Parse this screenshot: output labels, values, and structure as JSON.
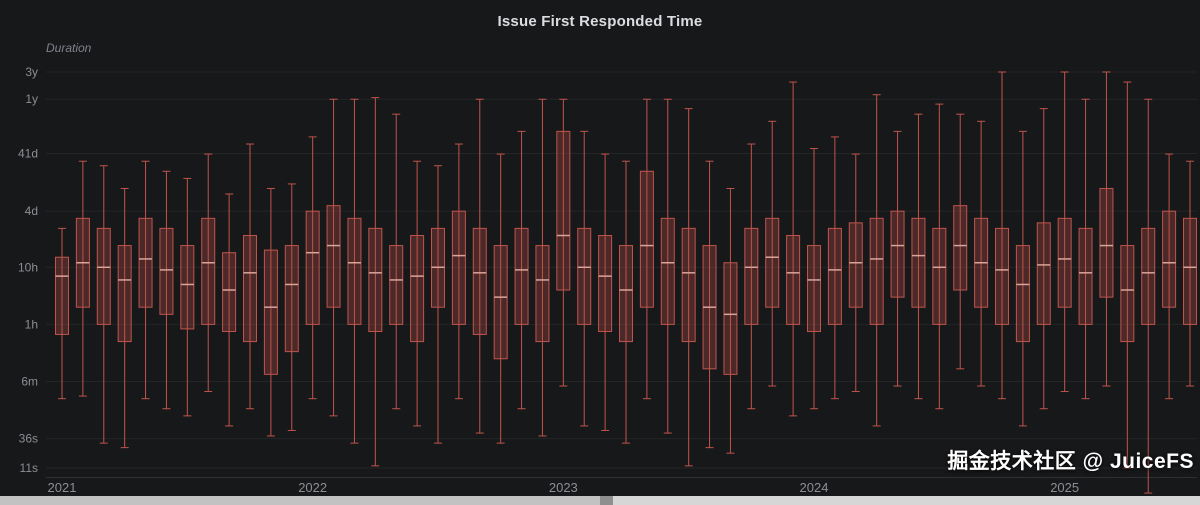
{
  "title": "Issue First Responded Time",
  "y_axis_label": "Duration",
  "watermark": "掘金技术社区 @ JuiceFS",
  "colors": {
    "background": "#17181a",
    "grid": "rgba(255,255,255,0.06)",
    "axis_line": "#2e3034",
    "axis_text": "#8b8e94",
    "title_text": "#dcdde0",
    "box_fill": "rgba(196,84,74,0.30)",
    "box_stroke": "#c0544c",
    "median": "#dca399"
  },
  "chart_data": {
    "type": "boxplot",
    "title": "Issue First Responded Time",
    "ylabel": "Duration",
    "y_scale": "log",
    "y_unit": "seconds",
    "box_values_order": [
      "low",
      "q1",
      "median",
      "q3",
      "high"
    ],
    "y_ticks": [
      {
        "label": "3y",
        "value": 94608000
      },
      {
        "label": "1y",
        "value": 31536000
      },
      {
        "label": "41d",
        "value": 3542400
      },
      {
        "label": "4d",
        "value": 345600
      },
      {
        "label": "10h",
        "value": 36000
      },
      {
        "label": "1h",
        "value": 3600
      },
      {
        "label": "6m",
        "value": 360
      },
      {
        "label": "36s",
        "value": 36
      },
      {
        "label": "11s",
        "value": 11
      }
    ],
    "x_ticks": [
      {
        "label": "2021",
        "month_index": 0
      },
      {
        "label": "2022",
        "month_index": 12
      },
      {
        "label": "2023",
        "month_index": 24
      },
      {
        "label": "2024",
        "month_index": 36
      },
      {
        "label": "2025",
        "month_index": 48
      }
    ],
    "categories": [
      "2021-01",
      "2021-02",
      "2021-03",
      "2021-04",
      "2021-05",
      "2021-06",
      "2021-07",
      "2021-08",
      "2021-09",
      "2021-10",
      "2021-11",
      "2021-12",
      "2022-01",
      "2022-02",
      "2022-03",
      "2022-04",
      "2022-05",
      "2022-06",
      "2022-07",
      "2022-08",
      "2022-09",
      "2022-10",
      "2022-11",
      "2022-12",
      "2023-01",
      "2023-02",
      "2023-03",
      "2023-04",
      "2023-05",
      "2023-06",
      "2023-07",
      "2023-08",
      "2023-09",
      "2023-10",
      "2023-11",
      "2023-12",
      "2024-01",
      "2024-02",
      "2024-03",
      "2024-04",
      "2024-05",
      "2024-06",
      "2024-07",
      "2024-08",
      "2024-09",
      "2024-10",
      "2024-11",
      "2024-12",
      "2025-01",
      "2025-02",
      "2025-03",
      "2025-04",
      "2025-05",
      "2025-06",
      "2025-07"
    ],
    "boxes": [
      [
        180,
        2400,
        25200,
        54000,
        172800
      ],
      [
        200,
        7200,
        43200,
        259200,
        2592000
      ],
      [
        30,
        3600,
        36000,
        172800,
        2160000
      ],
      [
        25,
        1800,
        21600,
        86400,
        864000
      ],
      [
        180,
        7200,
        50400,
        259200,
        2592000
      ],
      [
        120,
        5400,
        32400,
        172800,
        1728000
      ],
      [
        90,
        3000,
        18000,
        86400,
        1296000
      ],
      [
        240,
        3600,
        43200,
        259200,
        3456000
      ],
      [
        60,
        2700,
        14400,
        64800,
        691200
      ],
      [
        120,
        1800,
        28800,
        129600,
        5184000
      ],
      [
        40,
        480,
        7200,
        72000,
        864000
      ],
      [
        50,
        1200,
        18000,
        86400,
        1036800
      ],
      [
        180,
        3600,
        64800,
        345600,
        6912000
      ],
      [
        90,
        7200,
        86400,
        432000,
        31536000
      ],
      [
        30,
        3600,
        43200,
        259200,
        31536000
      ],
      [
        12,
        2700,
        28800,
        172800,
        33696000
      ],
      [
        120,
        3600,
        21600,
        86400,
        17280000
      ],
      [
        60,
        1800,
        25200,
        129600,
        2592000
      ],
      [
        30,
        7200,
        36000,
        172800,
        2160000
      ],
      [
        180,
        3600,
        57600,
        345600,
        5184000
      ],
      [
        45,
        2400,
        28800,
        172800,
        31536000
      ],
      [
        30,
        900,
        10800,
        86400,
        3456000
      ],
      [
        120,
        3600,
        32400,
        172800,
        8640000
      ],
      [
        40,
        1800,
        21600,
        86400,
        31536000
      ],
      [
        300,
        14400,
        129600,
        8640000,
        31536000
      ],
      [
        60,
        3600,
        36000,
        172800,
        8640000
      ],
      [
        50,
        2700,
        25200,
        129600,
        3456000
      ],
      [
        30,
        1800,
        14400,
        86400,
        2592000
      ],
      [
        180,
        7200,
        86400,
        1728000,
        31536000
      ],
      [
        45,
        3600,
        43200,
        259200,
        31536000
      ],
      [
        12,
        1800,
        28800,
        172800,
        21600000
      ],
      [
        25,
        600,
        7200,
        86400,
        2592000
      ],
      [
        20,
        480,
        5400,
        43200,
        864000
      ],
      [
        120,
        3600,
        36000,
        172800,
        5184000
      ],
      [
        300,
        7200,
        54000,
        259200,
        12960000
      ],
      [
        90,
        3600,
        28800,
        129600,
        63072000
      ],
      [
        120,
        2700,
        21600,
        86400,
        4320000
      ],
      [
        180,
        3600,
        32400,
        172800,
        6912000
      ],
      [
        240,
        7200,
        43200,
        216000,
        3456000
      ],
      [
        60,
        3600,
        50400,
        259200,
        37843200
      ],
      [
        300,
        10800,
        86400,
        345600,
        8640000
      ],
      [
        180,
        7200,
        57600,
        259200,
        17280000
      ],
      [
        120,
        3600,
        36000,
        172800,
        25920000
      ],
      [
        600,
        14400,
        86400,
        432000,
        17280000
      ],
      [
        300,
        7200,
        43200,
        259200,
        12960000
      ],
      [
        180,
        3600,
        32400,
        172800,
        94608000
      ],
      [
        60,
        1800,
        18000,
        86400,
        8640000
      ],
      [
        120,
        3600,
        39600,
        216000,
        21600000
      ],
      [
        240,
        7200,
        50400,
        259200,
        94608000
      ],
      [
        180,
        3600,
        28800,
        172800,
        31536000
      ],
      [
        300,
        10800,
        86400,
        864000,
        94608000
      ],
      [
        11,
        1800,
        14400,
        86400,
        63072000
      ],
      [
        4,
        3600,
        28800,
        172800,
        31536000
      ],
      [
        180,
        7200,
        43200,
        345600,
        3456000
      ],
      [
        300,
        3600,
        36000,
        259200,
        2592000
      ]
    ]
  }
}
